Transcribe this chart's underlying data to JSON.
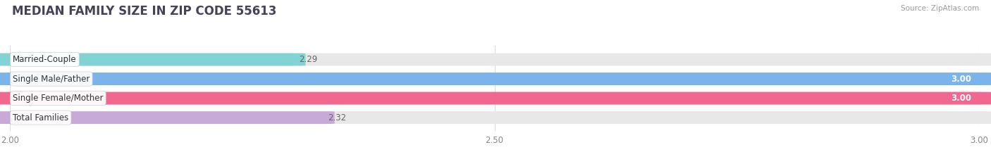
{
  "title": "MEDIAN FAMILY SIZE IN ZIP CODE 55613",
  "source": "Source: ZipAtlas.com",
  "categories": [
    "Married-Couple",
    "Single Male/Father",
    "Single Female/Mother",
    "Total Families"
  ],
  "values": [
    2.29,
    3.0,
    3.0,
    2.32
  ],
  "bar_colors": [
    "#82d4d4",
    "#7ab4ea",
    "#f06890",
    "#c8aad8"
  ],
  "bar_bg_color": "#e8e8e8",
  "xlim": [
    2.0,
    3.0
  ],
  "xticks": [
    2.0,
    2.5,
    3.0
  ],
  "xtick_labels": [
    "2.00",
    "2.50",
    "3.00"
  ],
  "label_fontsize": 8.5,
  "value_fontsize": 8.5,
  "title_fontsize": 12,
  "bar_height": 0.62,
  "bar_gap": 0.18,
  "figsize": [
    14.06,
    2.33
  ]
}
